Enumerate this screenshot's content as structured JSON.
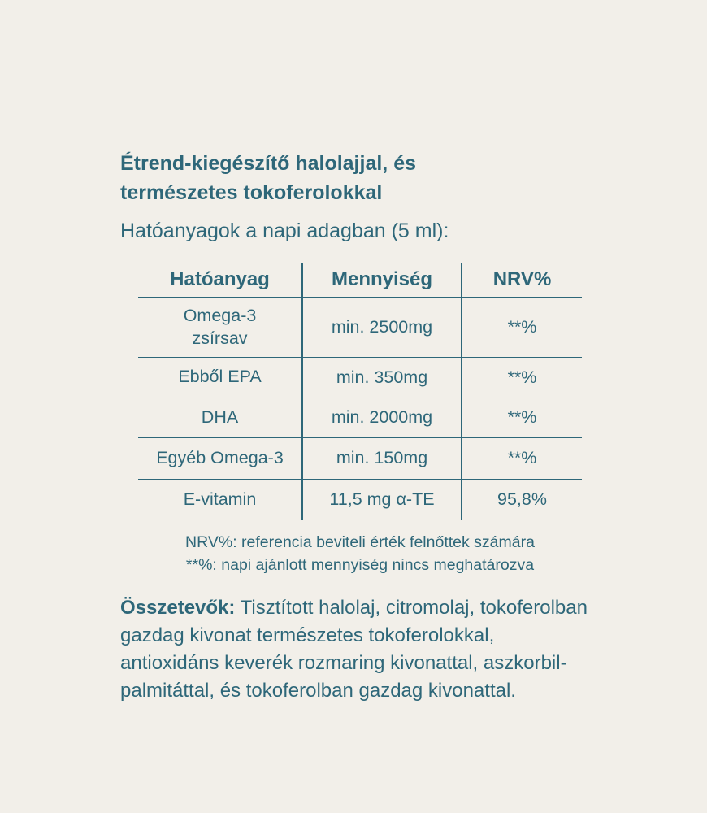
{
  "colors": {
    "background": "#f2efe9",
    "text": "#2e6779",
    "border": "#2e6779"
  },
  "title": {
    "line1": "Étrend-kiegészítő halolajjal, és",
    "line2": "természetes tokoferolokkal"
  },
  "subtitle": "Hatóanyagok a napi adagban (5 ml):",
  "table": {
    "headers": [
      "Hatóanyag",
      "Mennyiség",
      "NRV%"
    ],
    "rows": [
      {
        "substance": "Omega-3\nzsírsav",
        "amount": "min. 2500mg",
        "nrv": "**%"
      },
      {
        "substance": "Ebből EPA",
        "amount": "min. 350mg",
        "nrv": "**%"
      },
      {
        "substance": "DHA",
        "amount": "min. 2000mg",
        "nrv": "**%"
      },
      {
        "substance": "Egyéb Omega-3",
        "amount": "min. 150mg",
        "nrv": "**%"
      },
      {
        "substance": "E-vitamin",
        "amount": "11,5 mg α-TE",
        "nrv": "95,8%"
      }
    ]
  },
  "footnotes": [
    "NRV%: referencia beviteli érték felnőttek számára",
    "**%: napi ajánlott mennyiség nincs meghatározva"
  ],
  "ingredients": {
    "label": "Összetevők:",
    "text": " Tisztított halolaj, citromolaj, tokoferolban gazdag kivonat természetes tokoferolokkal, antioxidáns keverék rozmaring kivonattal, aszkorbil-palmitáttal, és tokoferolban gazdag kivonattal."
  }
}
